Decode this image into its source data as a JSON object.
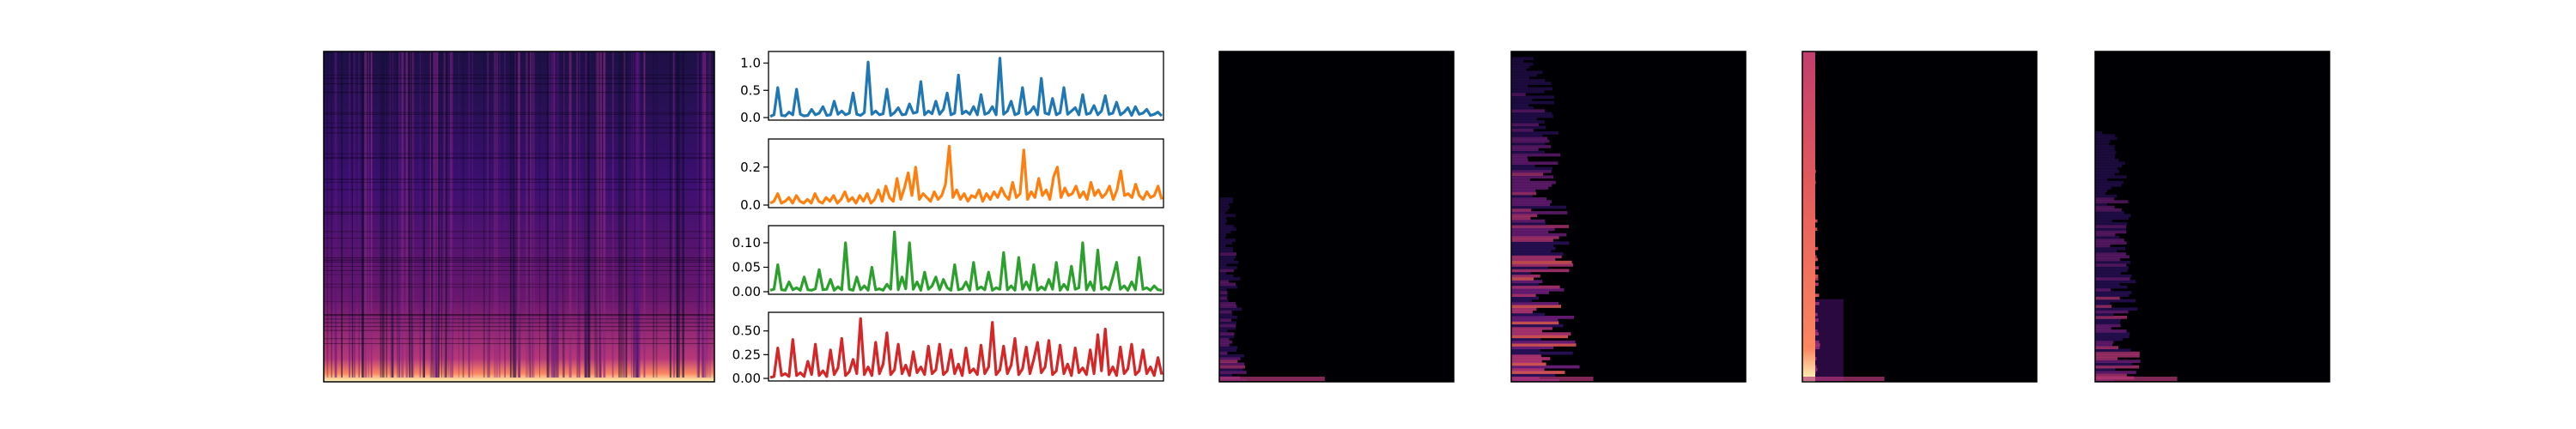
{
  "chart_data": [
    {
      "type": "heatmap",
      "description_colormap": "magma",
      "title": "",
      "xlabel": "",
      "ylabel": "",
      "energy_profile": "bright low-frequency band at bottom, vertical striations across the full width"
    },
    {
      "type": "line",
      "color": "#1f77b4",
      "ylim": [
        0,
        1.15
      ],
      "yticks": [
        "0.0",
        "0.5",
        "1.0"
      ],
      "ytick_values": [
        0,
        0.5,
        1.0
      ],
      "values": [
        0.02,
        0.05,
        0.55,
        0.04,
        0.03,
        0.1,
        0.05,
        0.52,
        0.06,
        0.03,
        0.04,
        0.15,
        0.05,
        0.08,
        0.2,
        0.04,
        0.05,
        0.3,
        0.06,
        0.12,
        0.05,
        0.08,
        0.45,
        0.06,
        0.04,
        0.09,
        1.02,
        0.06,
        0.12,
        0.05,
        0.07,
        0.52,
        0.04,
        0.09,
        0.18,
        0.05,
        0.06,
        0.25,
        0.08,
        0.1,
        0.66,
        0.05,
        0.12,
        0.07,
        0.3,
        0.06,
        0.15,
        0.45,
        0.05,
        0.08,
        0.78,
        0.07,
        0.12,
        0.06,
        0.2,
        0.05,
        0.42,
        0.06,
        0.09,
        0.2,
        0.05,
        1.09,
        0.06,
        0.12,
        0.3,
        0.05,
        0.08,
        0.55,
        0.06,
        0.1,
        0.2,
        0.05,
        0.72,
        0.08,
        0.06,
        0.35,
        0.05,
        0.09,
        0.55,
        0.06,
        0.12,
        0.18,
        0.05,
        0.42,
        0.06,
        0.08,
        0.22,
        0.05,
        0.12,
        0.4,
        0.06,
        0.08,
        0.28,
        0.05,
        0.1,
        0.18,
        0.04,
        0.2,
        0.06,
        0.08,
        0.15,
        0.04,
        0.06,
        0.1,
        0.03
      ]
    },
    {
      "type": "line",
      "color": "#ff7f0e",
      "ylim": [
        0,
        0.33
      ],
      "yticks": [
        "0.0",
        "0.2"
      ],
      "ytick_values": [
        0,
        0.2
      ],
      "values": [
        0.01,
        0.02,
        0.06,
        0.01,
        0.02,
        0.04,
        0.01,
        0.05,
        0.02,
        0.01,
        0.03,
        0.01,
        0.06,
        0.02,
        0.01,
        0.04,
        0.02,
        0.05,
        0.01,
        0.03,
        0.07,
        0.02,
        0.04,
        0.01,
        0.05,
        0.02,
        0.06,
        0.01,
        0.03,
        0.08,
        0.02,
        0.1,
        0.04,
        0.02,
        0.14,
        0.03,
        0.09,
        0.17,
        0.05,
        0.2,
        0.03,
        0.06,
        0.04,
        0.02,
        0.07,
        0.03,
        0.05,
        0.11,
        0.31,
        0.04,
        0.08,
        0.03,
        0.06,
        0.02,
        0.05,
        0.04,
        0.08,
        0.02,
        0.06,
        0.03,
        0.07,
        0.04,
        0.09,
        0.05,
        0.03,
        0.12,
        0.04,
        0.06,
        0.29,
        0.03,
        0.07,
        0.04,
        0.14,
        0.05,
        0.08,
        0.03,
        0.15,
        0.2,
        0.04,
        0.09,
        0.05,
        0.06,
        0.1,
        0.04,
        0.07,
        0.03,
        0.12,
        0.05,
        0.08,
        0.04,
        0.06,
        0.1,
        0.03,
        0.08,
        0.18,
        0.05,
        0.06,
        0.04,
        0.11,
        0.05,
        0.03,
        0.07,
        0.04,
        0.05,
        0.1,
        0.03
      ]
    },
    {
      "type": "line",
      "color": "#2ca02c",
      "ylim": [
        0,
        0.128
      ],
      "yticks": [
        "0.00",
        "0.05",
        "0.10"
      ],
      "ytick_values": [
        0,
        0.05,
        0.1
      ],
      "values": [
        0.003,
        0.005,
        0.055,
        0.004,
        0.003,
        0.02,
        0.004,
        0.008,
        0.003,
        0.03,
        0.004,
        0.003,
        0.006,
        0.045,
        0.004,
        0.005,
        0.025,
        0.003,
        0.01,
        0.004,
        0.1,
        0.005,
        0.003,
        0.03,
        0.004,
        0.012,
        0.003,
        0.05,
        0.004,
        0.006,
        0.003,
        0.015,
        0.005,
        0.122,
        0.004,
        0.03,
        0.006,
        0.1,
        0.005,
        0.02,
        0.003,
        0.04,
        0.005,
        0.012,
        0.03,
        0.004,
        0.025,
        0.008,
        0.003,
        0.055,
        0.004,
        0.006,
        0.02,
        0.003,
        0.06,
        0.005,
        0.01,
        0.004,
        0.04,
        0.003,
        0.008,
        0.005,
        0.08,
        0.004,
        0.012,
        0.003,
        0.07,
        0.005,
        0.02,
        0.004,
        0.055,
        0.003,
        0.01,
        0.004,
        0.025,
        0.005,
        0.06,
        0.003,
        0.015,
        0.004,
        0.052,
        0.005,
        0.008,
        0.1,
        0.004,
        0.02,
        0.003,
        0.085,
        0.005,
        0.01,
        0.004,
        0.03,
        0.06,
        0.005,
        0.012,
        0.003,
        0.02,
        0.004,
        0.07,
        0.005,
        0.008,
        0.003,
        0.012,
        0.004,
        0.003
      ]
    },
    {
      "type": "line",
      "color": "#d62728",
      "ylim": [
        0,
        0.66
      ],
      "yticks": [
        "0.00",
        "0.25",
        "0.50"
      ],
      "ytick_values": [
        0,
        0.25,
        0.5
      ],
      "values": [
        0.01,
        0.02,
        0.32,
        0.03,
        0.05,
        0.02,
        0.41,
        0.03,
        0.06,
        0.02,
        0.18,
        0.04,
        0.36,
        0.03,
        0.08,
        0.02,
        0.3,
        0.04,
        0.11,
        0.42,
        0.03,
        0.07,
        0.2,
        0.05,
        0.63,
        0.04,
        0.12,
        0.03,
        0.38,
        0.05,
        0.15,
        0.48,
        0.04,
        0.09,
        0.36,
        0.05,
        0.14,
        0.03,
        0.28,
        0.06,
        0.12,
        0.04,
        0.34,
        0.05,
        0.09,
        0.36,
        0.04,
        0.08,
        0.3,
        0.05,
        0.15,
        0.03,
        0.32,
        0.06,
        0.1,
        0.04,
        0.35,
        0.05,
        0.12,
        0.59,
        0.04,
        0.09,
        0.34,
        0.05,
        0.14,
        0.42,
        0.04,
        0.1,
        0.33,
        0.05,
        0.2,
        0.38,
        0.06,
        0.12,
        0.4,
        0.04,
        0.08,
        0.35,
        0.05,
        0.15,
        0.03,
        0.32,
        0.06,
        0.11,
        0.04,
        0.3,
        0.05,
        0.46,
        0.08,
        0.52,
        0.04,
        0.12,
        0.03,
        0.33,
        0.05,
        0.1,
        0.36,
        0.04,
        0.08,
        0.3,
        0.05,
        0.12,
        0.03,
        0.22,
        0.04
      ]
    },
    {
      "type": "heatmap",
      "description_colormap": "magma",
      "energy_profile": "mostly black, faint energy in lower-left corner",
      "left_extent": 0.12,
      "vertical_extent": 0.55,
      "intensity": 0.45
    },
    {
      "type": "heatmap",
      "description_colormap": "magma",
      "energy_profile": "purple-magenta energy along left side, extending upward",
      "left_extent": 0.3,
      "vertical_extent": 0.98,
      "intensity": 0.8
    },
    {
      "type": "heatmap",
      "description_colormap": "magma",
      "energy_profile": "bright orange vertical band at far left across full height",
      "left_extent": 0.08,
      "vertical_extent": 1.0,
      "intensity": 1.0
    },
    {
      "type": "heatmap",
      "description_colormap": "magma",
      "energy_profile": "faint purple energy along left side, lower part",
      "left_extent": 0.2,
      "vertical_extent": 0.75,
      "intensity": 0.55
    }
  ]
}
